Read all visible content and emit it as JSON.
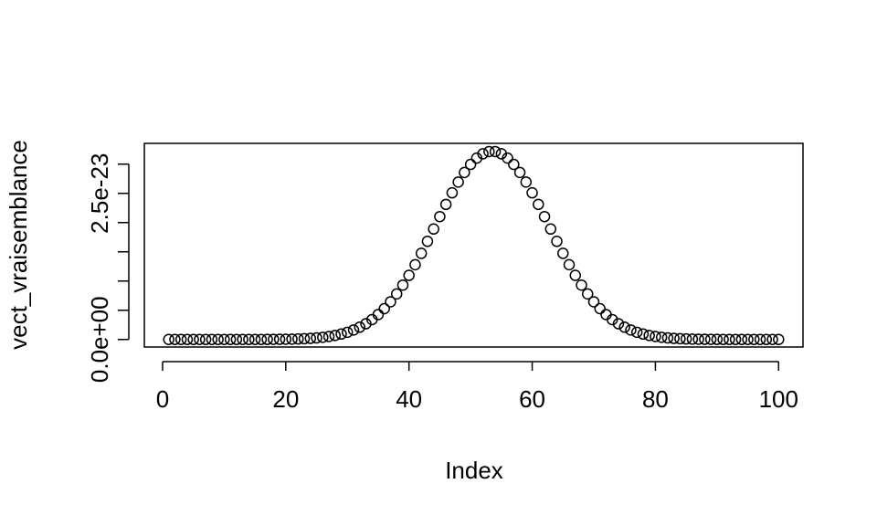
{
  "chart_data": {
    "type": "scatter",
    "x_label": "Index",
    "y_label": "vect_vraisemblance",
    "x": [
      1,
      2,
      3,
      4,
      5,
      6,
      7,
      8,
      9,
      10,
      11,
      12,
      13,
      14,
      15,
      16,
      17,
      18,
      19,
      20,
      21,
      22,
      23,
      24,
      25,
      26,
      27,
      28,
      29,
      30,
      31,
      32,
      33,
      34,
      35,
      36,
      37,
      38,
      39,
      40,
      41,
      42,
      43,
      44,
      45,
      46,
      47,
      48,
      49,
      50,
      51,
      52,
      53,
      54,
      55,
      56,
      57,
      58,
      59,
      60,
      61,
      62,
      63,
      64,
      65,
      66,
      67,
      68,
      69,
      70,
      71,
      72,
      73,
      74,
      75,
      76,
      77,
      78,
      79,
      80,
      81,
      82,
      83,
      84,
      85,
      86,
      87,
      88,
      89,
      90,
      91,
      92,
      93,
      94,
      95,
      96,
      97,
      98,
      99,
      100
    ],
    "values": [
      0,
      0,
      0,
      0,
      0,
      0,
      0,
      0,
      0,
      0,
      0,
      1e-27,
      2e-27,
      3e-27,
      5e-27,
      8e-27,
      1.2e-26,
      1.9e-26,
      2.9e-26,
      4.3e-26,
      6.3e-26,
      9.1e-26,
      1.32e-25,
      1.88e-25,
      2.65e-25,
      3.69e-25,
      5.08e-25,
      6.92e-25,
      9.28e-25,
      1.23e-24,
      1.62e-24,
      2.1e-24,
      2.69e-24,
      3.4e-24,
      4.26e-24,
      5.27e-24,
      6.45e-24,
      7.79e-24,
      9.3e-24,
      1.097e-23,
      1.279e-23,
      1.474e-23,
      1.679e-23,
      1.89e-23,
      2.102e-23,
      2.311e-23,
      2.509e-23,
      2.693e-23,
      2.857e-23,
      2.995e-23,
      3.103e-23,
      3.177e-23,
      3.215e-23,
      3.215e-23,
      3.177e-23,
      3.103e-23,
      2.995e-23,
      2.857e-23,
      2.693e-23,
      2.509e-23,
      2.311e-23,
      2.102e-23,
      1.89e-23,
      1.679e-23,
      1.474e-23,
      1.279e-23,
      1.097e-23,
      9.3e-24,
      7.79e-24,
      6.45e-24,
      5.27e-24,
      4.26e-24,
      3.4e-24,
      2.69e-24,
      2.1e-24,
      1.62e-24,
      1.23e-24,
      9.28e-25,
      6.92e-25,
      5.08e-25,
      3.69e-25,
      2.65e-25,
      1.88e-25,
      1.32e-25,
      9.1e-26,
      6.3e-26,
      4.3e-26,
      2.9e-26,
      1.9e-26,
      1.2e-26,
      8e-27,
      5e-27,
      3e-27,
      2e-27,
      1e-27,
      0,
      0,
      0,
      0,
      0
    ],
    "color": "#000000",
    "xlim": [
      -2.96,
      103.96
    ],
    "xticks": [
      0,
      20,
      40,
      60,
      80,
      100
    ],
    "ylim": [
      -1.29e-24,
      3.355e-23
    ],
    "yticks": [
      {
        "value": 0,
        "label": "0.0e+00"
      },
      {
        "value": 5e-24,
        "label": null
      },
      {
        "value": 1e-23,
        "label": null
      },
      {
        "value": 1.5e-23,
        "label": null
      },
      {
        "value": 2e-23,
        "label": null
      },
      {
        "value": 2.5e-23,
        "label": "2.5e-23"
      },
      {
        "value": 3e-23,
        "label": null
      }
    ],
    "grid": false
  }
}
